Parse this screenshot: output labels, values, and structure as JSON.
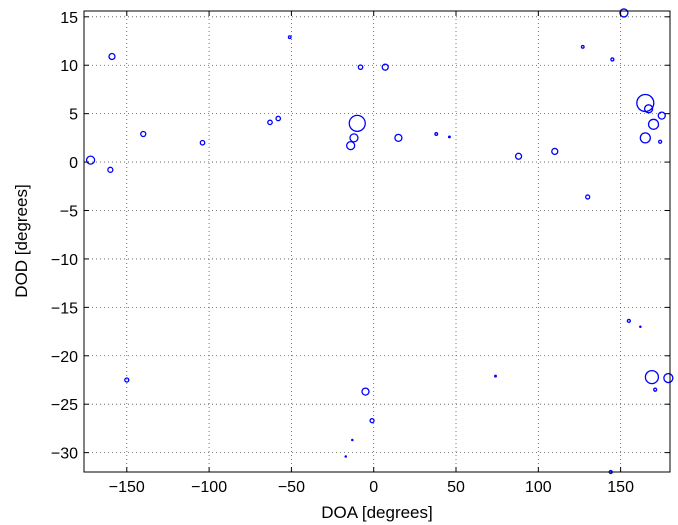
{
  "chart_data": {
    "type": "scatter",
    "xlabel": "DOA [degrees]",
    "ylabel": "DOD [degrees]",
    "xlim": [
      -176,
      180
    ],
    "ylim": [
      -32,
      15.6
    ],
    "xticks": [
      -150,
      -100,
      -50,
      0,
      50,
      100,
      150
    ],
    "yticks": [
      -30,
      -25,
      -20,
      -15,
      -10,
      -5,
      0,
      5,
      10,
      15
    ],
    "xtick_labels": [
      "−150",
      "−100",
      "−50",
      "0",
      "50",
      "100",
      "150"
    ],
    "ytick_labels": [
      "−30",
      "−25",
      "−20",
      "−15",
      "−10",
      "−5",
      "0",
      "5",
      "10",
      "15"
    ],
    "grid": true,
    "marker_color": "#0000ff",
    "series": [
      {
        "marker": "circle",
        "points": [
          {
            "x": -172,
            "y": 0.2,
            "size": 4
          },
          {
            "x": -159,
            "y": 10.9,
            "size": 3
          },
          {
            "x": -160,
            "y": -0.8,
            "size": 2.5
          },
          {
            "x": -140,
            "y": 2.9,
            "size": 2.5
          },
          {
            "x": -104,
            "y": 2.0,
            "size": 2.2
          },
          {
            "x": -63,
            "y": 4.1,
            "size": 2.2
          },
          {
            "x": -58,
            "y": 4.5,
            "size": 2.2
          },
          {
            "x": -51,
            "y": 12.9,
            "size": 1.3
          },
          {
            "x": -10,
            "y": 4.0,
            "size": 8
          },
          {
            "x": -12,
            "y": 2.5,
            "size": 4
          },
          {
            "x": -14,
            "y": 1.7,
            "size": 4
          },
          {
            "x": -8,
            "y": 9.8,
            "size": 2.2
          },
          {
            "x": 7,
            "y": 9.8,
            "size": 3
          },
          {
            "x": 15,
            "y": 2.5,
            "size": 3.5
          },
          {
            "x": 38,
            "y": 2.9,
            "size": 1.3
          },
          {
            "x": 46,
            "y": 2.6,
            "size": 0.8
          },
          {
            "x": 88,
            "y": 0.6,
            "size": 3
          },
          {
            "x": 110,
            "y": 1.1,
            "size": 3
          },
          {
            "x": 127,
            "y": 11.9,
            "size": 1.3
          },
          {
            "x": 130,
            "y": -3.6,
            "size": 2
          },
          {
            "x": 145,
            "y": 10.6,
            "size": 1.5
          },
          {
            "x": 152,
            "y": 15.4,
            "size": 4
          },
          {
            "x": 165,
            "y": 6.1,
            "size": 8.5
          },
          {
            "x": 167,
            "y": 5.5,
            "size": 4
          },
          {
            "x": 170,
            "y": 3.9,
            "size": 5
          },
          {
            "x": 175,
            "y": 4.8,
            "size": 3.5
          },
          {
            "x": 165,
            "y": 2.5,
            "size": 5
          },
          {
            "x": 174,
            "y": 2.1,
            "size": 1.5
          },
          {
            "x": -150,
            "y": -22.5,
            "size": 2
          },
          {
            "x": -5,
            "y": -23.7,
            "size": 3.5
          },
          {
            "x": -1,
            "y": -26.7,
            "size": 2
          },
          {
            "x": -13,
            "y": -28.7,
            "size": 0.6
          },
          {
            "x": -17,
            "y": -30.4,
            "size": 0.6
          },
          {
            "x": 74,
            "y": -22.1,
            "size": 0.8
          },
          {
            "x": 144,
            "y": -32.0,
            "size": 1.5
          },
          {
            "x": 155,
            "y": -16.4,
            "size": 1.5
          },
          {
            "x": 162,
            "y": -17.0,
            "size": 0.6
          },
          {
            "x": 169,
            "y": -22.2,
            "size": 6.5
          },
          {
            "x": 171,
            "y": -23.5,
            "size": 1.5
          },
          {
            "x": 179,
            "y": -22.3,
            "size": 4.5
          }
        ]
      }
    ]
  }
}
